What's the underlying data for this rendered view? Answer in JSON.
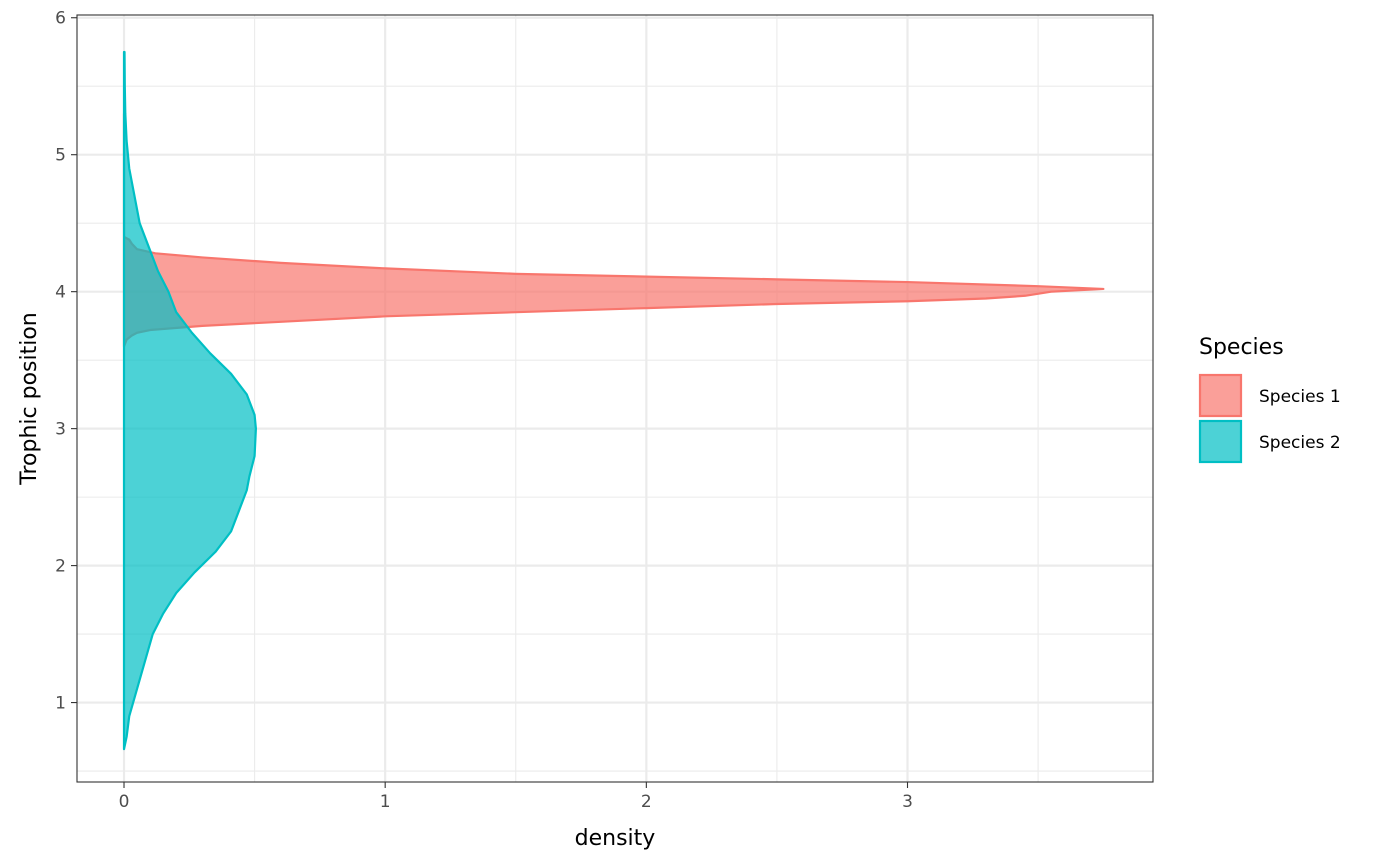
{
  "chart_data": {
    "type": "area",
    "orientation": "horizontal-density",
    "xlabel": "density",
    "ylabel": "Trophic position",
    "xlim": [
      -0.18,
      3.94
    ],
    "ylim": [
      0.42,
      6.02
    ],
    "x_ticks": [
      0,
      1,
      2,
      3
    ],
    "y_ticks": [
      1,
      2,
      3,
      4,
      5,
      6
    ],
    "grid": true,
    "legend": {
      "title": "Species",
      "placement": "right",
      "entries": [
        "Species 1",
        "Species 2"
      ]
    },
    "series": [
      {
        "name": "Species 1",
        "color": "#F8766D",
        "fill": "#F8766D",
        "fill_opacity": 0.7,
        "points": [
          [
            0.0,
            3.6
          ],
          [
            0.01,
            3.65
          ],
          [
            0.03,
            3.68
          ],
          [
            0.05,
            3.7
          ],
          [
            0.1,
            3.72
          ],
          [
            0.3,
            3.75
          ],
          [
            0.6,
            3.78
          ],
          [
            1.0,
            3.82
          ],
          [
            1.5,
            3.85
          ],
          [
            2.0,
            3.88
          ],
          [
            2.5,
            3.91
          ],
          [
            3.0,
            3.93
          ],
          [
            3.3,
            3.95
          ],
          [
            3.45,
            3.97
          ],
          [
            3.55,
            4.0
          ],
          [
            3.75,
            4.02
          ],
          [
            3.5,
            4.04
          ],
          [
            3.0,
            4.07
          ],
          [
            2.5,
            4.09
          ],
          [
            2.0,
            4.11
          ],
          [
            1.5,
            4.13
          ],
          [
            1.0,
            4.17
          ],
          [
            0.6,
            4.21
          ],
          [
            0.3,
            4.25
          ],
          [
            0.12,
            4.28
          ],
          [
            0.05,
            4.31
          ],
          [
            0.03,
            4.35
          ],
          [
            0.02,
            4.38
          ],
          [
            0.0,
            4.4
          ],
          [
            0.0,
            5.3
          ]
        ]
      },
      {
        "name": "Species 2",
        "color": "#00BFC4",
        "fill": "#00BFC4",
        "fill_opacity": 0.7,
        "points": [
          [
            0.0,
            0.66
          ],
          [
            0.01,
            0.75
          ],
          [
            0.02,
            0.9
          ],
          [
            0.05,
            1.1
          ],
          [
            0.08,
            1.3
          ],
          [
            0.11,
            1.5
          ],
          [
            0.15,
            1.65
          ],
          [
            0.2,
            1.8
          ],
          [
            0.27,
            1.95
          ],
          [
            0.35,
            2.1
          ],
          [
            0.41,
            2.25
          ],
          [
            0.44,
            2.4
          ],
          [
            0.47,
            2.55
          ],
          [
            0.48,
            2.65
          ],
          [
            0.5,
            2.8
          ],
          [
            0.505,
            3.0
          ],
          [
            0.5,
            3.1
          ],
          [
            0.47,
            3.25
          ],
          [
            0.41,
            3.4
          ],
          [
            0.33,
            3.55
          ],
          [
            0.26,
            3.7
          ],
          [
            0.2,
            3.85
          ],
          [
            0.17,
            4.0
          ],
          [
            0.13,
            4.15
          ],
          [
            0.1,
            4.3
          ],
          [
            0.06,
            4.5
          ],
          [
            0.04,
            4.7
          ],
          [
            0.02,
            4.9
          ],
          [
            0.01,
            5.1
          ],
          [
            0.005,
            5.3
          ],
          [
            0.003,
            5.5
          ],
          [
            0.002,
            5.75
          ]
        ]
      }
    ]
  }
}
